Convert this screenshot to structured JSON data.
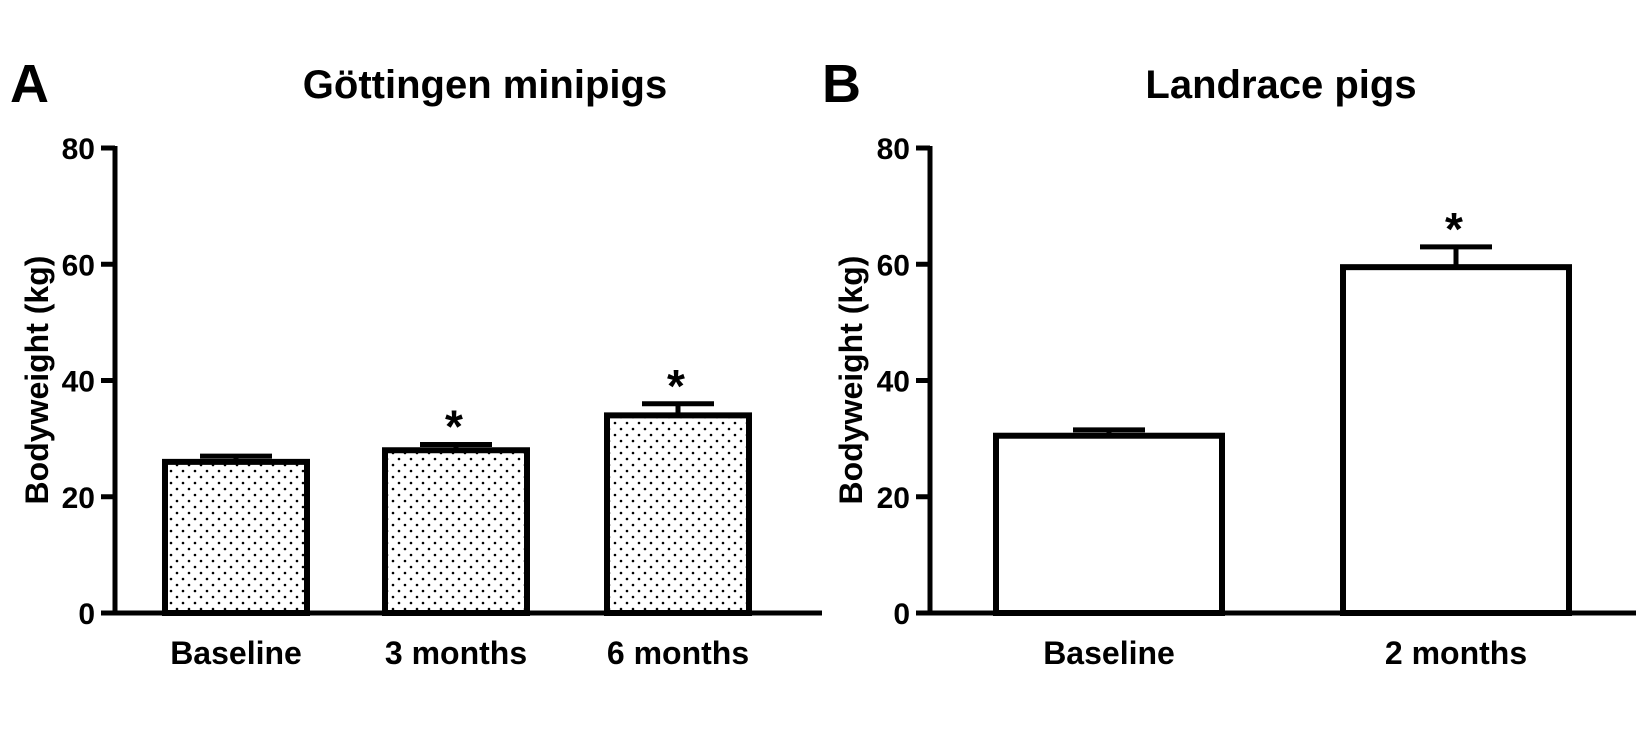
{
  "chart_data": [
    {
      "panel_label": "A",
      "type": "bar",
      "title": "Göttingen minipigs",
      "ylabel": "Bodyweight (kg)",
      "xlabel": "",
      "ylim": [
        0,
        80
      ],
      "yticks": [
        0,
        20,
        40,
        60,
        80
      ],
      "categories": [
        "Baseline",
        "3 months",
        "6 months"
      ],
      "values": [
        26,
        28,
        34
      ],
      "errors": [
        1,
        1,
        2
      ],
      "significance": [
        "",
        "*",
        "*"
      ],
      "fill": "dotted"
    },
    {
      "panel_label": "B",
      "type": "bar",
      "title": "Landrace pigs",
      "ylabel": "Bodyweight (kg)",
      "xlabel": "",
      "ylim": [
        0,
        80
      ],
      "yticks": [
        0,
        20,
        40,
        60,
        80
      ],
      "categories": [
        "Baseline",
        "2 months"
      ],
      "values": [
        30.5,
        59.5
      ],
      "errors": [
        1,
        3.5
      ],
      "significance": [
        "",
        "*"
      ],
      "fill": "white"
    }
  ]
}
